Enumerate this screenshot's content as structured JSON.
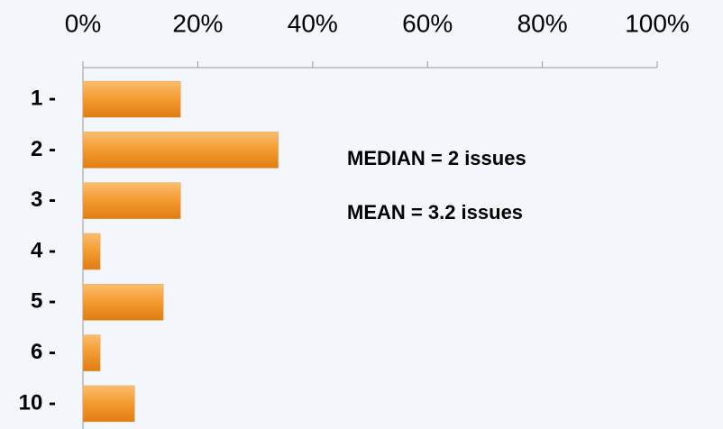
{
  "chart_data": {
    "type": "bar",
    "orientation": "horizontal",
    "categories": [
      "1 -",
      "2 -",
      "3 -",
      "4 -",
      "5 -",
      "6 -",
      "10 -"
    ],
    "values": [
      17,
      34,
      17,
      3,
      14,
      3,
      9
    ],
    "color": "#f39a30",
    "xlim": [
      0,
      100
    ],
    "xticks": [
      {
        "value": 0,
        "label": "0%"
      },
      {
        "value": 20,
        "label": "20%"
      },
      {
        "value": 40,
        "label": "40%"
      },
      {
        "value": 60,
        "label": "60%"
      },
      {
        "value": 80,
        "label": "80%"
      },
      {
        "value": 100,
        "label": "100%"
      }
    ],
    "annotations": [
      "MEDIAN = 2 issues",
      "MEAN = 3.2 issues"
    ]
  }
}
